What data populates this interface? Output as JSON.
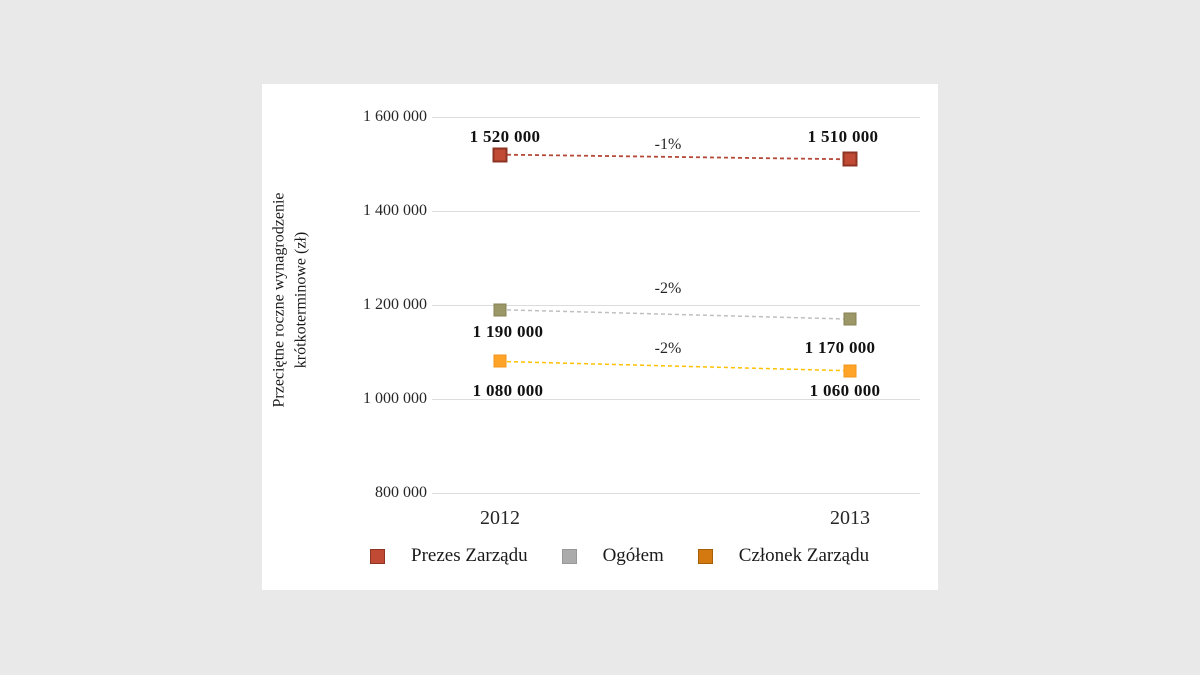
{
  "page": {
    "background_color": "#e9e9e9",
    "card_background_color": "#ffffff"
  },
  "chart_data": {
    "type": "line",
    "title": "",
    "ylabel": "Przeciętne roczne wynagrodzenie krótkoterminowe (zł)",
    "xlabel": "",
    "categories": [
      "2012",
      "2013"
    ],
    "yticks": [
      "1 600 000",
      "1 400 000",
      "1 200 000",
      "1 000 000",
      "800 000"
    ],
    "ytick_values": [
      1600000,
      1400000,
      1200000,
      1000000,
      800000
    ],
    "ylim": [
      800000,
      1600000
    ],
    "grid": true,
    "line_style": "dashed",
    "legend_position": "bottom",
    "series": [
      {
        "name": "Prezes Zarządu",
        "values": [
          1520000,
          1510000
        ],
        "value_labels": [
          "1 520 000",
          "1 510 000"
        ],
        "change_label": "-1%",
        "marker_color": "#c04a33",
        "marker_border": "#8e3423",
        "line_color": "#b5493a",
        "legend_color": "#c04a33",
        "legend_border": "#8e3423"
      },
      {
        "name": "Ogółem",
        "values": [
          1190000,
          1170000
        ],
        "value_labels": [
          "1 190 000",
          "1 170 000"
        ],
        "change_label": "-2%",
        "marker_color": "#9b9766",
        "marker_border": "#868250",
        "line_color": "#bfbfbf",
        "legend_color": "#ababab",
        "legend_border": "#989898"
      },
      {
        "name": "Członek Zarządu",
        "values": [
          1080000,
          1060000
        ],
        "value_labels": [
          "1 080 000",
          "1 060 000"
        ],
        "change_label": "-2%",
        "marker_color": "#ffa329",
        "marker_border": "#f0961c",
        "line_color": "#ffc000",
        "legend_color": "#d3790f",
        "legend_border": "#a65f07"
      }
    ]
  }
}
